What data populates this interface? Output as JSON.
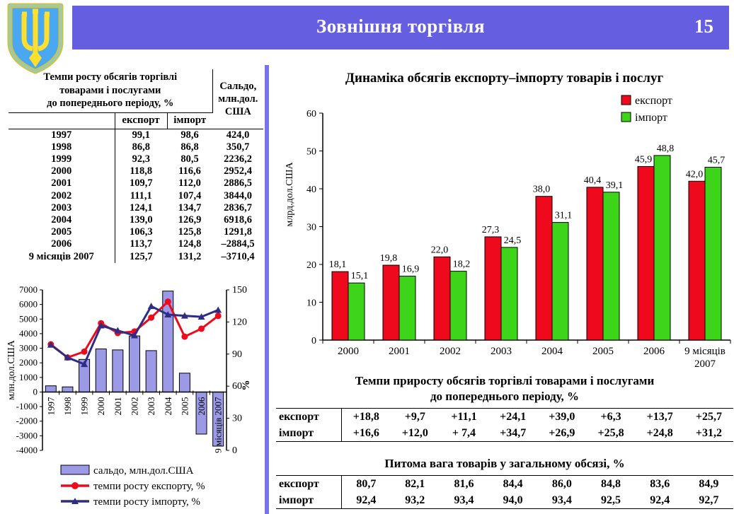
{
  "header": {
    "title": "Зовнішня торгівля",
    "page_number": "15",
    "banner_color": "#655ee0",
    "emblem_icon": "ukraine-trident-emblem"
  },
  "left": {
    "table": {
      "title": "Темпи росту обсягів торгівлі\nтоварами і послугами\nдо попереднього періоду, %",
      "saldo_header": "Сальдо,\nмлн.дол.\nСША",
      "col_export": "експорт",
      "col_import": "імпорт",
      "rows": [
        {
          "period": "1997",
          "export": "99,1",
          "import": "98,6",
          "saldo": "424,0"
        },
        {
          "period": "1998",
          "export": "86,8",
          "import": "86,8",
          "saldo": "350,7"
        },
        {
          "period": "1999",
          "export": "92,3",
          "import": "80,5",
          "saldo": "2236,2"
        },
        {
          "period": "2000",
          "export": "118,8",
          "import": "116,6",
          "saldo": "2952,4"
        },
        {
          "period": "2001",
          "export": "109,7",
          "import": "112,0",
          "saldo": "2886,5"
        },
        {
          "period": "2002",
          "export": "111,1",
          "import": "107,4",
          "saldo": "3844,0"
        },
        {
          "period": "2003",
          "export": "124,1",
          "import": "134,7",
          "saldo": "2836,7"
        },
        {
          "period": "2004",
          "export": "139,0",
          "import": "126,9",
          "saldo": "6918,6"
        },
        {
          "period": "2005",
          "export": "106,3",
          "import": "125,8",
          "saldo": "1291,8"
        },
        {
          "period": "2006",
          "export": "113,7",
          "import": "124,8",
          "saldo": "–2884,5"
        },
        {
          "period": "9 місяців 2007",
          "export": "125,7",
          "import": "131,2",
          "saldo": "–3710,4"
        }
      ]
    }
  },
  "right": {
    "chart_title": "Динаміка обсягів експорту–імпорту товарів і послуг",
    "growth_table": {
      "title_line1": "Темпи  приросту обсягів торгівлі товарами і послугами",
      "title_line2": "до попереднього періоду, %",
      "rows": [
        {
          "label": "експорт",
          "values": [
            "+18,8",
            "+9,7",
            "+11,1",
            "+24,1",
            "+39,0",
            "+6,3",
            "+13,7",
            "+25,7"
          ]
        },
        {
          "label": "імпорт",
          "values": [
            "+16,6",
            "+12,0",
            "+ 7,4",
            "+34,7",
            "+26,9",
            "+25,8",
            "+24,8",
            "+31,2"
          ]
        }
      ]
    },
    "share_table": {
      "title": "Питома вага товарів у загальному обсязі, %",
      "rows": [
        {
          "label": "експорт",
          "values": [
            "80,7",
            "82,1",
            "81,6",
            "84,4",
            "86,0",
            "84,8",
            "83,6",
            "84,9"
          ]
        },
        {
          "label": "імпорт",
          "values": [
            "92,4",
            "93,2",
            "93,4",
            "94,0",
            "93,4",
            "92,5",
            "92,4",
            "92,7"
          ]
        }
      ]
    }
  },
  "chart_data": [
    {
      "type": "combo-bar-line",
      "name": "saldo-and-growth-rates",
      "categories": [
        "1997",
        "1998",
        "1999",
        "2000",
        "2001",
        "2002",
        "2003",
        "2004",
        "2005",
        "2006",
        "9 місяців 2007"
      ],
      "bar_series": {
        "name": "сальдо, млн.дол.США",
        "axis": "left",
        "color": "#9c99e6",
        "values": [
          424.0,
          350.7,
          2236.2,
          2952.4,
          2886.5,
          3844.0,
          2836.7,
          6918.6,
          1291.8,
          -2884.5,
          -3710.4
        ]
      },
      "line_series": [
        {
          "name": "темпи росту експорту, %",
          "color": "#ee0a1c",
          "marker": "circle",
          "values": [
            99.1,
            86.8,
            92.3,
            118.8,
            109.7,
            111.1,
            124.1,
            139.0,
            106.3,
            113.7,
            125.7
          ]
        },
        {
          "name": "темпи росту імпорту, %",
          "color": "#2f2d83",
          "marker": "triangle",
          "values": [
            98.6,
            86.8,
            80.5,
            116.6,
            112.0,
            107.4,
            134.7,
            126.9,
            125.8,
            124.8,
            131.2
          ]
        }
      ],
      "left_axis": {
        "label": "млн.дол.США",
        "min": -4000,
        "max": 7000,
        "step": 1000
      },
      "right_axis": {
        "label": "%",
        "min": 0,
        "max": 150,
        "step": 30
      },
      "grid": false,
      "legend_position": "bottom"
    },
    {
      "type": "bar",
      "name": "export-import-volumes",
      "title": "Динаміка обсягів експорту–імпорту товарів і послуг",
      "categories": [
        "2000",
        "2001",
        "2002",
        "2003",
        "2004",
        "2005",
        "2006",
        "9 місяців\n2007"
      ],
      "series": [
        {
          "name": "експорт",
          "color": "#ee0a1c",
          "values": [
            18.1,
            19.8,
            22.0,
            27.3,
            38.0,
            40.4,
            45.9,
            42.0
          ]
        },
        {
          "name": "імпорт",
          "color": "#3ed41a",
          "values": [
            15.1,
            16.9,
            18.2,
            24.5,
            31.1,
            39.1,
            48.8,
            45.7
          ]
        }
      ],
      "xlabel": "",
      "ylabel": "млрд.дол.США",
      "ylim": [
        0,
        60
      ],
      "ystep": 10,
      "grid": false,
      "legend_position": "top-right",
      "data_labels": true,
      "decimal_separator": ","
    }
  ]
}
